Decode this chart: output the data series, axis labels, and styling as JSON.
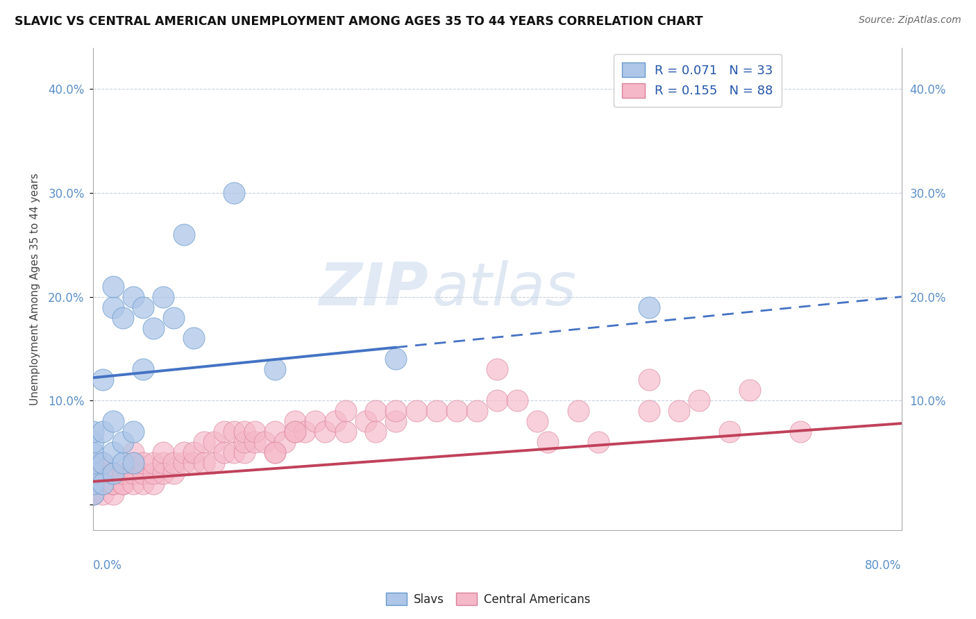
{
  "title": "SLAVIC VS CENTRAL AMERICAN UNEMPLOYMENT AMONG AGES 35 TO 44 YEARS CORRELATION CHART",
  "source": "Source: ZipAtlas.com",
  "ylabel": "Unemployment Among Ages 35 to 44 years",
  "y_ticks": [
    0.0,
    0.1,
    0.2,
    0.3,
    0.4
  ],
  "y_tick_labels_left": [
    "",
    "10.0%",
    "20.0%",
    "30.0%",
    "40.0%"
  ],
  "y_tick_labels_right": [
    "",
    "10.0%",
    "20.0%",
    "30.0%",
    "40.0%"
  ],
  "x_range": [
    0.0,
    0.8
  ],
  "y_range": [
    -0.025,
    0.44
  ],
  "slav_color": "#aec6e8",
  "slav_edge_color": "#6699cc",
  "slav_line_color": "#4472c4",
  "central_color": "#f5b8c8",
  "central_edge_color": "#d98099",
  "central_line_color": "#c0415a",
  "watermark_zip": "ZIP",
  "watermark_atlas": "atlas",
  "slav_trend_solid_end": 0.3,
  "slav_trend_y0": 0.122,
  "slav_trend_y1": 0.2,
  "central_trend_y0": 0.022,
  "central_trend_y1": 0.078,
  "slav_points_x": [
    0.0,
    0.0,
    0.0,
    0.0,
    0.0,
    0.0,
    0.0,
    0.01,
    0.01,
    0.01,
    0.01,
    0.02,
    0.02,
    0.02,
    0.02,
    0.02,
    0.03,
    0.03,
    0.03,
    0.04,
    0.04,
    0.04,
    0.05,
    0.05,
    0.06,
    0.07,
    0.08,
    0.09,
    0.1,
    0.14,
    0.18,
    0.55,
    0.3
  ],
  "slav_points_y": [
    0.01,
    0.02,
    0.03,
    0.04,
    0.05,
    0.06,
    0.07,
    0.02,
    0.04,
    0.07,
    0.12,
    0.03,
    0.05,
    0.08,
    0.19,
    0.21,
    0.04,
    0.06,
    0.18,
    0.04,
    0.07,
    0.2,
    0.13,
    0.19,
    0.17,
    0.2,
    0.18,
    0.26,
    0.16,
    0.3,
    0.13,
    0.19,
    0.14
  ],
  "central_points_x": [
    0.0,
    0.0,
    0.0,
    0.0,
    0.0,
    0.0,
    0.01,
    0.01,
    0.01,
    0.01,
    0.01,
    0.02,
    0.02,
    0.02,
    0.02,
    0.02,
    0.03,
    0.03,
    0.03,
    0.04,
    0.04,
    0.04,
    0.04,
    0.05,
    0.05,
    0.05,
    0.06,
    0.06,
    0.06,
    0.07,
    0.07,
    0.07,
    0.08,
    0.08,
    0.09,
    0.09,
    0.1,
    0.1,
    0.11,
    0.11,
    0.12,
    0.12,
    0.13,
    0.13,
    0.14,
    0.14,
    0.15,
    0.15,
    0.15,
    0.16,
    0.16,
    0.17,
    0.18,
    0.18,
    0.19,
    0.2,
    0.2,
    0.21,
    0.22,
    0.23,
    0.24,
    0.25,
    0.25,
    0.27,
    0.28,
    0.3,
    0.3,
    0.32,
    0.34,
    0.36,
    0.38,
    0.4,
    0.42,
    0.44,
    0.48,
    0.5,
    0.55,
    0.6,
    0.65,
    0.7,
    0.55,
    0.58,
    0.63,
    0.4,
    0.45,
    0.28,
    0.2,
    0.18
  ],
  "central_points_y": [
    0.01,
    0.01,
    0.02,
    0.02,
    0.03,
    0.04,
    0.01,
    0.02,
    0.02,
    0.03,
    0.04,
    0.01,
    0.02,
    0.02,
    0.03,
    0.03,
    0.02,
    0.02,
    0.03,
    0.02,
    0.03,
    0.04,
    0.05,
    0.02,
    0.03,
    0.04,
    0.02,
    0.03,
    0.04,
    0.03,
    0.04,
    0.05,
    0.03,
    0.04,
    0.04,
    0.05,
    0.04,
    0.05,
    0.04,
    0.06,
    0.04,
    0.06,
    0.05,
    0.07,
    0.05,
    0.07,
    0.05,
    0.06,
    0.07,
    0.06,
    0.07,
    0.06,
    0.05,
    0.07,
    0.06,
    0.07,
    0.08,
    0.07,
    0.08,
    0.07,
    0.08,
    0.07,
    0.09,
    0.08,
    0.09,
    0.08,
    0.09,
    0.09,
    0.09,
    0.09,
    0.09,
    0.1,
    0.1,
    0.08,
    0.09,
    0.06,
    0.09,
    0.1,
    0.11,
    0.07,
    0.12,
    0.09,
    0.07,
    0.13,
    0.06,
    0.07,
    0.07,
    0.05
  ]
}
